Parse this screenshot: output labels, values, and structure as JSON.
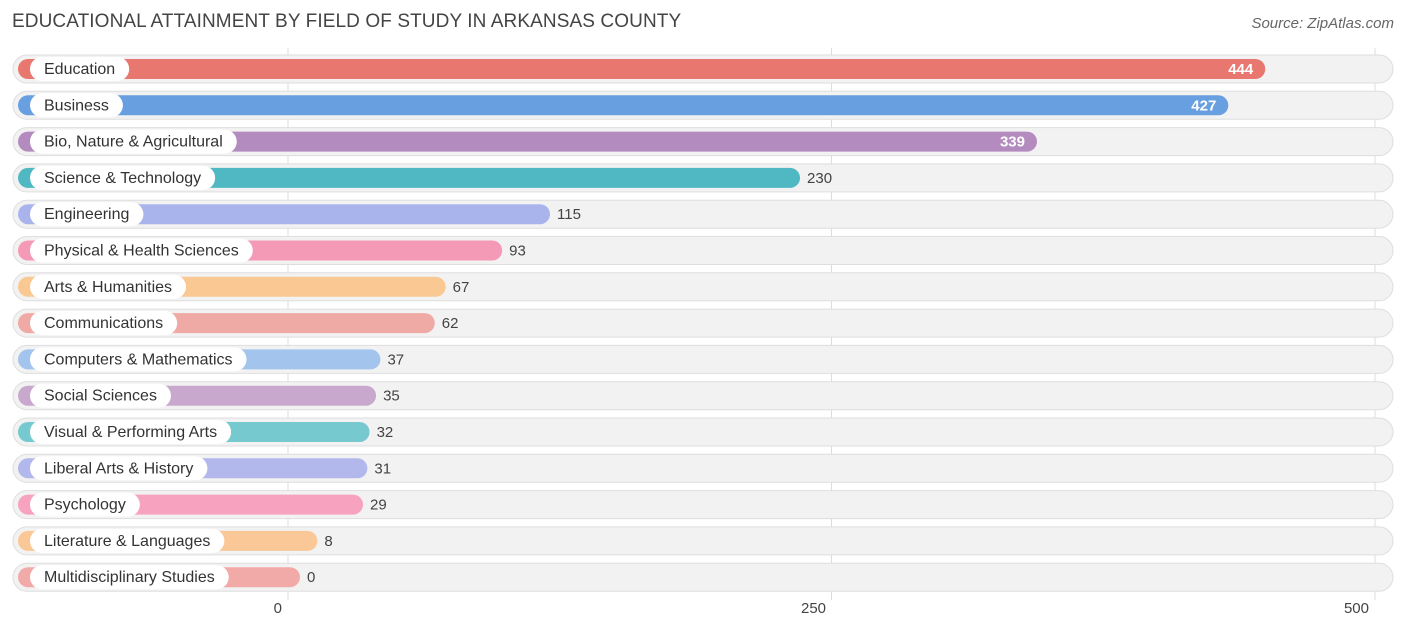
{
  "title": "EDUCATIONAL ATTAINMENT BY FIELD OF STUDY IN ARKANSAS COUNTY",
  "source": "Source: ZipAtlas.com",
  "chart_data": {
    "type": "bar",
    "orientation": "horizontal",
    "title": "EDUCATIONAL ATTAINMENT BY FIELD OF STUDY IN ARKANSAS COUNTY",
    "xlabel": "",
    "ylabel": "",
    "xlim": [
      0,
      500
    ],
    "ticks": [
      0,
      250,
      500
    ],
    "tick_labels": [
      "0",
      "250",
      "500"
    ],
    "grid": true,
    "categories": [
      "Education",
      "Business",
      "Bio, Nature & Agricultural",
      "Science & Technology",
      "Engineering",
      "Physical & Health Sciences",
      "Arts & Humanities",
      "Communications",
      "Computers & Mathematics",
      "Social Sciences",
      "Visual & Performing Arts",
      "Liberal Arts & History",
      "Psychology",
      "Literature & Languages",
      "Multidisciplinary Studies"
    ],
    "values": [
      444,
      427,
      339,
      230,
      115,
      93,
      67,
      62,
      37,
      35,
      32,
      31,
      29,
      8,
      0
    ],
    "value_labels": [
      "444",
      "427",
      "339",
      "230",
      "115",
      "93",
      "67",
      "62",
      "37",
      "35",
      "32",
      "31",
      "29",
      "8",
      "0"
    ],
    "colors": [
      "#e8776f",
      "#689fe0",
      "#b48bbe",
      "#4fb8c3",
      "#aab4ec",
      "#f49ab7",
      "#fac893",
      "#efaaa5",
      "#a3c4ec",
      "#c8a9cd",
      "#75c9cf",
      "#b2b8ec",
      "#f7a3bf",
      "#fac896",
      "#f2aaa8"
    ]
  }
}
